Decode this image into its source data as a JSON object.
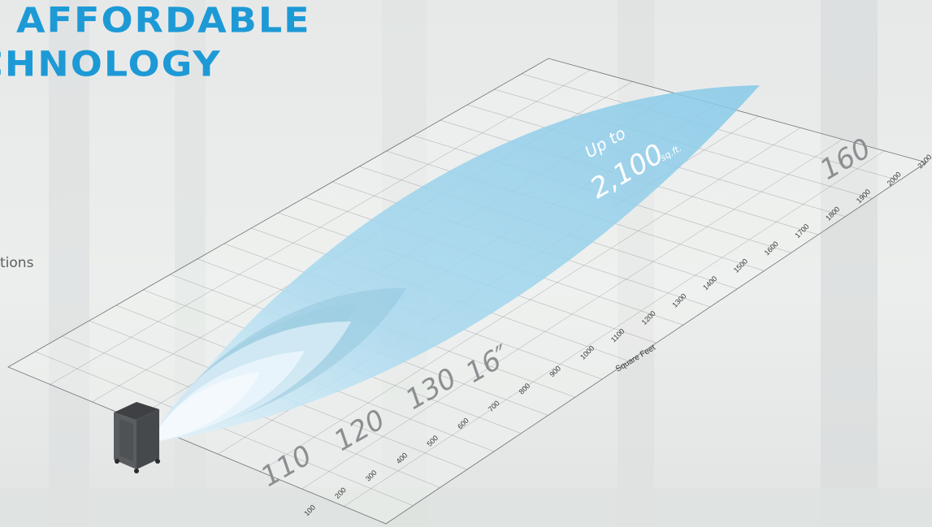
{
  "headline": {
    "line1": "AFFORDABLE",
    "line2": "CHNOLOGY"
  },
  "side_text": "tions",
  "diagram": {
    "model_labels": [
      "110",
      "120",
      "130",
      "16″",
      "160"
    ],
    "coverage": {
      "prefix": "Up to",
      "value": "2,100",
      "unit": "sq.ft."
    },
    "axis_title": "Square Feet",
    "axis_ticks": [
      "100",
      "200",
      "300",
      "400",
      "500",
      "600",
      "700",
      "800",
      "900",
      "1000",
      "1100",
      "1200",
      "1300",
      "1400",
      "1500",
      "1600",
      "1700",
      "1800",
      "1900",
      "2000",
      "2100"
    ],
    "axis_range": [
      100,
      2100
    ],
    "lobes": [
      {
        "model": "110",
        "reach_sqft": 400
      },
      {
        "model": "120",
        "reach_sqft": 600
      },
      {
        "model": "130",
        "reach_sqft": 800
      },
      {
        "model": "16″",
        "reach_sqft": 1000
      },
      {
        "model": "160",
        "reach_sqft": 2100
      }
    ]
  },
  "colors": {
    "headline": "#1d9ad6",
    "coverage_fill": "#7cc6e6",
    "grid_line": "#6e7173",
    "unit_body": "#4b4d50"
  }
}
